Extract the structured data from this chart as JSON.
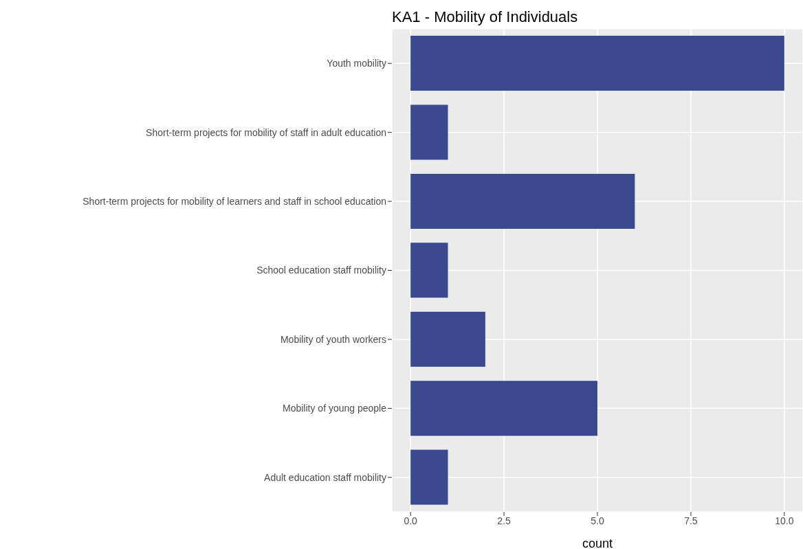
{
  "chart_data": {
    "type": "bar",
    "orientation": "horizontal",
    "title": "KA1 - Mobility of Individuals",
    "xlabel": "count",
    "categories": [
      "Youth mobility",
      "Short-term projects for mobility of staff in adult education",
      "Short-term projects for mobility of learners and staff in school education",
      "School education staff mobility",
      "Mobility of youth workers",
      "Mobility  of young people",
      "Adult education staff mobility"
    ],
    "values": [
      10,
      1,
      6,
      1,
      2,
      5,
      1
    ],
    "color": "#3b4a8f",
    "xlim": [
      -0.5,
      10.5
    ],
    "xticks": [
      {
        "value": 0,
        "label": "0.0"
      },
      {
        "value": 2.5,
        "label": "2.5"
      },
      {
        "value": 5,
        "label": "5.0"
      },
      {
        "value": 7.5,
        "label": "7.5"
      },
      {
        "value": 10,
        "label": "10.0"
      }
    ],
    "grid": true
  }
}
